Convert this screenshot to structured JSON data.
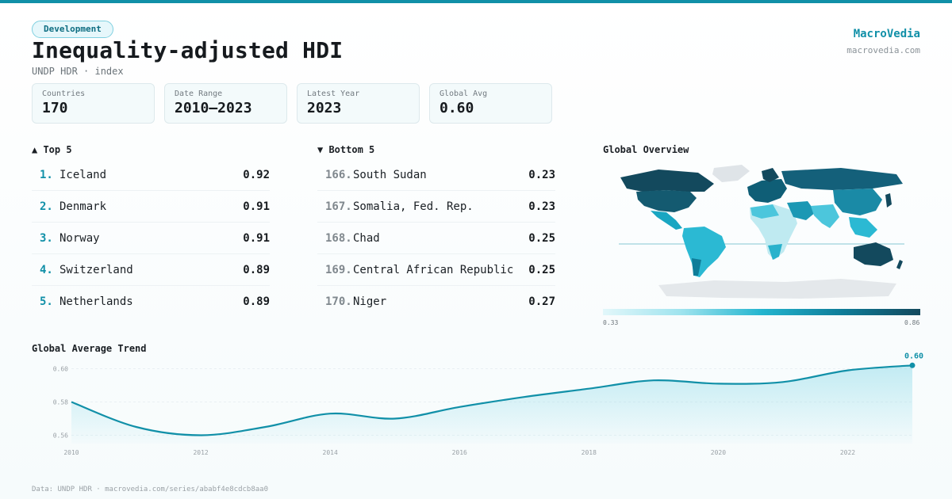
{
  "header": {
    "tag": "Development",
    "title": "Inequality-adjusted HDI",
    "subtitle": "UNDP HDR · index"
  },
  "brand": {
    "name": "MacroVedia",
    "url": "macrovedia.com"
  },
  "stats": [
    {
      "label": "Countries",
      "value": "170"
    },
    {
      "label": "Date Range",
      "value": "2010–2023"
    },
    {
      "label": "Latest Year",
      "value": "2023"
    },
    {
      "label": "Global Avg",
      "value": "0.60"
    }
  ],
  "top": {
    "title": "▲ Top 5",
    "items": [
      {
        "rank": "1.",
        "name": "Iceland",
        "value": "0.92"
      },
      {
        "rank": "2.",
        "name": "Denmark",
        "value": "0.91"
      },
      {
        "rank": "3.",
        "name": "Norway",
        "value": "0.91"
      },
      {
        "rank": "4.",
        "name": "Switzerland",
        "value": "0.89"
      },
      {
        "rank": "5.",
        "name": "Netherlands",
        "value": "0.89"
      }
    ]
  },
  "bottom": {
    "title": "▼ Bottom 5",
    "items": [
      {
        "rank": "166.",
        "name": "South Sudan",
        "value": "0.23"
      },
      {
        "rank": "167.",
        "name": "Somalia, Fed. Rep.",
        "value": "0.23"
      },
      {
        "rank": "168.",
        "name": "Chad",
        "value": "0.25"
      },
      {
        "rank": "169.",
        "name": "Central African Republic",
        "value": "0.25"
      },
      {
        "rank": "170.",
        "name": "Niger",
        "value": "0.27"
      }
    ]
  },
  "map": {
    "title": "Global Overview",
    "legend_min": "0.33",
    "legend_max": "0.86"
  },
  "trend": {
    "title": "Global Average Trend"
  },
  "footer": "Data: UNDP HDR · macrovedia.com/series/ababf4e8cdcb8aa0",
  "colors": {
    "accent": "#1190a8",
    "line": "#1190a8",
    "dark": "#13495d"
  },
  "chart_data": {
    "type": "area",
    "title": "Global Average Trend",
    "x": [
      2010,
      2011,
      2012,
      2013,
      2014,
      2015,
      2016,
      2017,
      2018,
      2019,
      2020,
      2021,
      2022,
      2023
    ],
    "series": [
      {
        "values": [
          0.58,
          0.565,
          0.56,
          0.565,
          0.573,
          0.57,
          0.577,
          0.583,
          0.588,
          0.593,
          0.591,
          0.592,
          0.599,
          0.602
        ]
      }
    ],
    "x_ticks": [
      "2010",
      "2012",
      "2014",
      "2016",
      "2018",
      "2020",
      "2022"
    ],
    "y_ticks": [
      "0.56",
      "0.58",
      "0.60"
    ],
    "ylim": [
      0.555,
      0.605
    ],
    "end_label": "0.60",
    "grid": true
  }
}
